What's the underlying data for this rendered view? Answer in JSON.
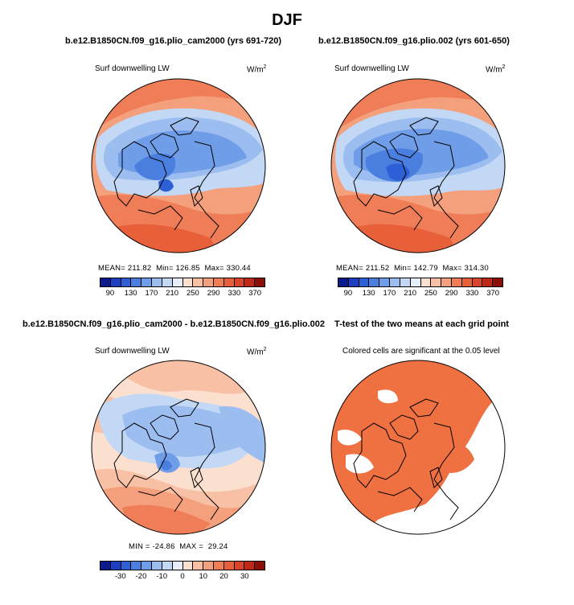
{
  "figure": {
    "title": "DJF"
  },
  "panels": [
    {
      "title": "b.e12.B1850CN.f09_g16.plio_cam2000 (yrs 691-720)",
      "subtitle": "Surf downwelling LW",
      "units_base": "W/m",
      "units_exp": "2",
      "stats_text": "MEAN= 211.82  Min= 126.85  Max= 330.44"
    },
    {
      "title": "b.e12.B1850CN.f09_g16.plio.002 (yrs 601-650)",
      "subtitle": "Surf downwelling LW",
      "units_base": "W/m",
      "units_exp": "2",
      "stats_text": "MEAN= 211.52  Min= 142.79  Max= 314.30"
    },
    {
      "title": "b.e12.B1850CN.f09_g16.plio_cam2000 - b.e12.B1850CN.f09_g16.plio.002",
      "subtitle": "Surf downwelling LW",
      "units_base": "W/m",
      "units_exp": "2",
      "stats_text": "MIN = -24.86  MAX =  29.24"
    },
    {
      "title": "T-test of the two means at each grid point",
      "subtitle": "Colored cells are significant at the 0.05 level"
    }
  ],
  "colorbars": {
    "absolute": {
      "labels": [
        "90",
        "130",
        "170",
        "210",
        "250",
        "290",
        "330",
        "370"
      ],
      "colors": [
        "#0a1a8c",
        "#1f3fbf",
        "#2d5fd6",
        "#4a7fe0",
        "#6f9de8",
        "#9cbdf0",
        "#c2d8f5",
        "#e6eefa",
        "#fbe0d0",
        "#f8c0a4",
        "#f4a07c",
        "#ef7e58",
        "#e8603a",
        "#d8452a",
        "#bf2a18",
        "#8c0f08"
      ]
    },
    "difference": {
      "labels": [
        "-30",
        "-20",
        "-10",
        "0",
        "10",
        "20",
        "30"
      ],
      "colors": [
        "#0a1a8c",
        "#1f3fbf",
        "#2d5fd6",
        "#4a7fe0",
        "#6f9de8",
        "#9cbdf0",
        "#c2d8f5",
        "#e6eefa",
        "#fbe0d0",
        "#f8c0a4",
        "#f4a07c",
        "#ef7e58",
        "#e8603a",
        "#d8452a",
        "#bf2a18",
        "#8c0f08"
      ]
    }
  },
  "ttest": {
    "significant_color": "#ef7040"
  }
}
